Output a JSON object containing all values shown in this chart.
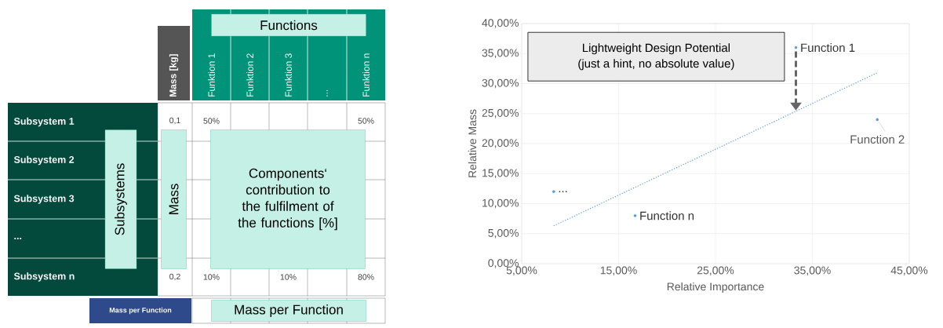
{
  "chart_data": [
    {
      "type": "other",
      "annotations": [
        "Funktion 1",
        "Funktion 2",
        "Funktion 3",
        "...",
        "Funktion n",
        "Functions",
        "Mass [kg]",
        "Subsystem 1",
        "Subsystem 2",
        "Subsystem 3",
        "...",
        "Subsystem n",
        "Subsystems",
        "Mass",
        "Components‘ contribution to the fulfilment of the functions [%]",
        "Mass per Function",
        "Mass per Function",
        "0,1",
        "50%",
        "50%",
        "0,2",
        "10%",
        "10%",
        "80%"
      ]
    },
    {
      "type": "scatter",
      "xlabel": "Relative Importance",
      "ylabel": "Relative Mass",
      "xlim": [
        5,
        45
      ],
      "ylim": [
        0,
        40
      ],
      "xticks": [
        {
          "value": 5,
          "label": "5,00%"
        },
        {
          "value": 15,
          "label": "15,00%"
        },
        {
          "value": 25,
          "label": "25,00%"
        },
        {
          "value": 35,
          "label": "35,00%"
        },
        {
          "value": 45,
          "label": "45,00%"
        }
      ],
      "yticks": [
        {
          "value": 0,
          "label": "0,00%"
        },
        {
          "value": 5,
          "label": "5,00%"
        },
        {
          "value": 10,
          "label": "10,00%"
        },
        {
          "value": 15,
          "label": "15,00%"
        },
        {
          "value": 20,
          "label": "20,00%"
        },
        {
          "value": 25,
          "label": "25,00%"
        },
        {
          "value": 30,
          "label": "30,00%"
        },
        {
          "value": 35,
          "label": "35,00%"
        },
        {
          "value": 40,
          "label": "40,00%"
        }
      ],
      "grid": true,
      "annotations": [
        {
          "text": "...",
          "x": 8.3,
          "y": 12
        },
        {
          "text": "Function n",
          "x": 16.7,
          "y": 8
        },
        {
          "text": "Function 1",
          "x": 33.3,
          "y": 36
        },
        {
          "text": "Function 2",
          "x": 41.7,
          "y": 24
        },
        "Lightweight  Design Potential",
        "(just a hint, no absolute value)"
      ],
      "series": [
        {
          "type": "scatter",
          "color": "#5b9bd5",
          "marker": "circle",
          "x": [
            8.3,
            16.7,
            33.3,
            41.7
          ],
          "values": [
            12,
            8,
            36,
            24
          ]
        },
        {
          "type": "line",
          "color": "#5b9bd5",
          "line_style": "dotted",
          "x": [
            8.3,
            41.7
          ],
          "values": [
            6.3,
            31.8
          ]
        }
      ]
    }
  ]
}
